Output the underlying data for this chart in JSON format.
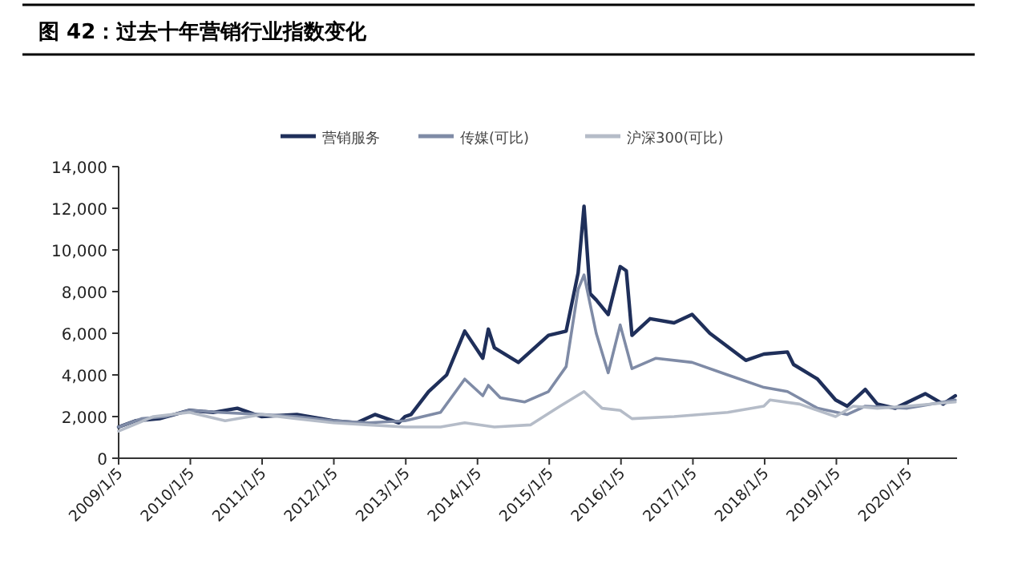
{
  "chart_data": {
    "type": "line",
    "title": "图 42：过去十年营销行业指数变化",
    "xlim": [
      "2009-01-05",
      "2020-09-10"
    ],
    "xticks": [
      {
        "value": "2009-01-05",
        "label": "2009/1/5"
      },
      {
        "value": "2010-01-05",
        "label": "2010/1/5"
      },
      {
        "value": "2011-01-05",
        "label": "2011/1/5"
      },
      {
        "value": "2012-01-05",
        "label": "2012/1/5"
      },
      {
        "value": "2013-01-05",
        "label": "2013/1/5"
      },
      {
        "value": "2014-01-05",
        "label": "2014/1/5"
      },
      {
        "value": "2015-01-05",
        "label": "2015/1/5"
      },
      {
        "value": "2016-01-05",
        "label": "2016/1/5"
      },
      {
        "value": "2017-01-05",
        "label": "2017/1/5"
      },
      {
        "value": "2018-01-05",
        "label": "2018/1/5"
      },
      {
        "value": "2019-01-05",
        "label": "2019/1/5"
      },
      {
        "value": "2020-01-05",
        "label": "2020/1/5"
      }
    ],
    "ylim": [
      0,
      14000
    ],
    "yticks": [
      0,
      {
        "value": 2000,
        "label": "2,000"
      },
      {
        "value": 4000,
        "label": "4,000"
      },
      {
        "value": 6000,
        "label": "6,000"
      },
      {
        "value": 8000,
        "label": "8,000"
      },
      {
        "value": 10000,
        "label": "10,000"
      },
      {
        "value": 12000,
        "label": "12,000"
      },
      {
        "value": 14000,
        "label": "14,000"
      }
    ],
    "grid": false,
    "legend": "top",
    "marker": "none",
    "line_style": "solid",
    "series": [
      {
        "name": "营销服务",
        "color": "#1f2f5a",
        "x": [
          "2009-01-05",
          "2009-04",
          "2009-08",
          "2010-01",
          "2010-05",
          "2010-09",
          "2011-01",
          "2011-07",
          "2012-01",
          "2012-05",
          "2012-08",
          "2012-12",
          "2013-01",
          "2013-02",
          "2013-05",
          "2013-08",
          "2013-11",
          "2014-02",
          "2014-03",
          "2014-04",
          "2014-08",
          "2015-01",
          "2015-04",
          "2015-06",
          "2015-07",
          "2015-08",
          "2015-09",
          "2015-11",
          "2016-01",
          "2016-02",
          "2016-03",
          "2016-06",
          "2016-10",
          "2017-01",
          "2017-04",
          "2017-10",
          "2018-01",
          "2018-05",
          "2018-06",
          "2018-10",
          "2019-01",
          "2019-03",
          "2019-06",
          "2019-08",
          "2019-11",
          "2020-04",
          "2020-07",
          "2020-09"
        ],
        "values": [
          1500,
          1800,
          1900,
          2300,
          2200,
          2400,
          2000,
          2100,
          1800,
          1700,
          2100,
          1700,
          2000,
          2100,
          3200,
          4000,
          6100,
          4800,
          6200,
          5300,
          4600,
          5900,
          6100,
          8900,
          12100,
          7900,
          7600,
          6900,
          9200,
          9000,
          5900,
          6700,
          6500,
          6900,
          6000,
          4700,
          5000,
          5100,
          4500,
          3800,
          2800,
          2500,
          3300,
          2600,
          2400,
          3100,
          2600,
          3000
        ]
      },
      {
        "name": "传媒(可比)",
        "color": "#7f8ba6",
        "x": [
          "2009-01-05",
          "2009-05",
          "2009-09",
          "2010-01",
          "2010-06",
          "2011-01",
          "2011-07",
          "2012-01",
          "2012-07",
          "2013-01",
          "2013-07",
          "2013-11",
          "2014-02",
          "2014-03",
          "2014-05",
          "2014-09",
          "2015-01",
          "2015-04",
          "2015-06",
          "2015-07",
          "2015-09",
          "2015-11",
          "2016-01",
          "2016-03",
          "2016-07",
          "2017-01",
          "2017-07",
          "2018-01",
          "2018-05",
          "2018-10",
          "2019-03",
          "2019-06",
          "2020-01",
          "2020-09"
        ],
        "values": [
          1500,
          1900,
          2000,
          2300,
          2200,
          2100,
          2000,
          1800,
          1700,
          1800,
          2200,
          3800,
          3000,
          3500,
          2900,
          2700,
          3200,
          4400,
          8100,
          8800,
          6000,
          4100,
          6400,
          4300,
          4800,
          4600,
          4000,
          3400,
          3200,
          2400,
          2100,
          2500,
          2400,
          2800
        ]
      },
      {
        "name": "沪深300(可比)",
        "color": "#b5bcc8",
        "x": [
          "2009-01-05",
          "2009-07",
          "2010-01",
          "2010-07",
          "2011-01",
          "2011-07",
          "2012-01",
          "2012-07",
          "2013-01",
          "2013-07",
          "2013-11",
          "2014-04",
          "2014-10",
          "2015-03",
          "2015-07",
          "2015-10",
          "2016-01",
          "2016-03",
          "2016-10",
          "2017-07",
          "2018-01",
          "2018-02",
          "2018-07",
          "2019-01",
          "2019-04",
          "2019-08",
          "2020-01",
          "2020-09"
        ],
        "values": [
          1300,
          2000,
          2200,
          1800,
          2100,
          1900,
          1700,
          1600,
          1500,
          1500,
          1700,
          1500,
          1600,
          2500,
          3200,
          2400,
          2300,
          1900,
          2000,
          2200,
          2500,
          2800,
          2600,
          2000,
          2500,
          2400,
          2500,
          2700
        ]
      }
    ]
  }
}
